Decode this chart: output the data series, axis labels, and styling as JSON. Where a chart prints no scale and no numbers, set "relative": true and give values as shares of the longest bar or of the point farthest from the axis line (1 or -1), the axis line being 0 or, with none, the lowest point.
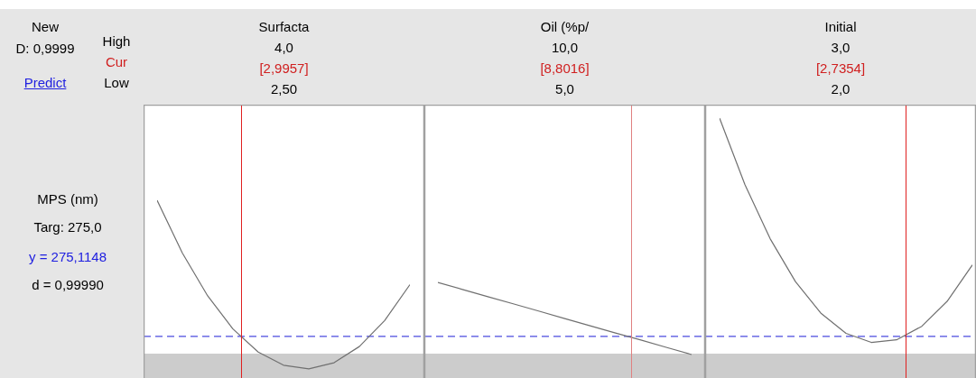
{
  "chart_data": [
    {
      "type": "line",
      "title": "Surfacta",
      "ylabel": "MPS (nm)",
      "annotations": [
        "4,0",
        "[2,9957]",
        "2,50",
        "New",
        "D: 0,9999",
        "Predict",
        "High",
        "Cur",
        "Low",
        "Targ: 275,0",
        "y = 275,1148",
        "d = 0,99990"
      ],
      "relative": true,
      "legend": false,
      "categories": [
        null,
        null,
        null,
        null,
        null,
        null,
        null,
        null,
        null,
        null,
        null
      ],
      "series": [
        {
          "color": "#707070",
          "values": [
            1.0,
            0.703,
            0.462,
            0.276,
            0.146,
            0.072,
            0.051,
            0.086,
            0.177,
            0.323,
            0.525
          ]
        }
      ],
      "ref_lines": [
        {
          "axis": "y",
          "value": 0.234,
          "color": "#4a4ae0",
          "line_style": "dashed"
        }
      ],
      "bands": [
        {
          "axis": "y",
          "from": 0,
          "to": 0.137,
          "color": "#cccccc"
        }
      ]
    },
    {
      "type": "line",
      "title": "Oil (%p/",
      "annotations": [
        "10,0",
        "[8,8016]",
        "5,0"
      ],
      "relative": true,
      "legend": false,
      "categories": [
        null,
        null,
        null,
        null,
        null,
        null,
        null,
        null,
        null,
        null,
        null
      ],
      "series": [
        {
          "color": "#707070",
          "values": [
            1.0,
            0.924,
            0.848,
            0.774,
            0.698,
            0.622,
            0.546,
            0.47,
            0.397,
            0.321,
            0.245
          ]
        }
      ],
      "ref_lines": [
        {
          "axis": "y",
          "value": 0.435,
          "color": "#4a4ae0",
          "line_style": "dashed"
        }
      ],
      "bands": [
        {
          "axis": "y",
          "from": 0,
          "to": 0.255,
          "color": "#cccccc"
        }
      ]
    },
    {
      "type": "line",
      "title": "Initial",
      "annotations": [
        "3,0",
        "[2,7354]",
        "2,0"
      ],
      "relative": true,
      "legend": false,
      "categories": [
        null,
        null,
        null,
        null,
        null,
        null,
        null,
        null,
        null,
        null,
        null
      ],
      "series": [
        {
          "color": "#707070",
          "values": [
            1.0,
            0.745,
            0.536,
            0.371,
            0.25,
            0.172,
            0.137,
            0.147,
            0.199,
            0.295,
            0.435
          ]
        }
      ],
      "ref_lines": [
        {
          "axis": "y",
          "value": 0.16,
          "color": "#4a4ae0",
          "line_style": "dashed"
        }
      ],
      "bands": [
        {
          "axis": "y",
          "from": 0,
          "to": 0.094,
          "color": "#cccccc"
        }
      ]
    }
  ]
}
